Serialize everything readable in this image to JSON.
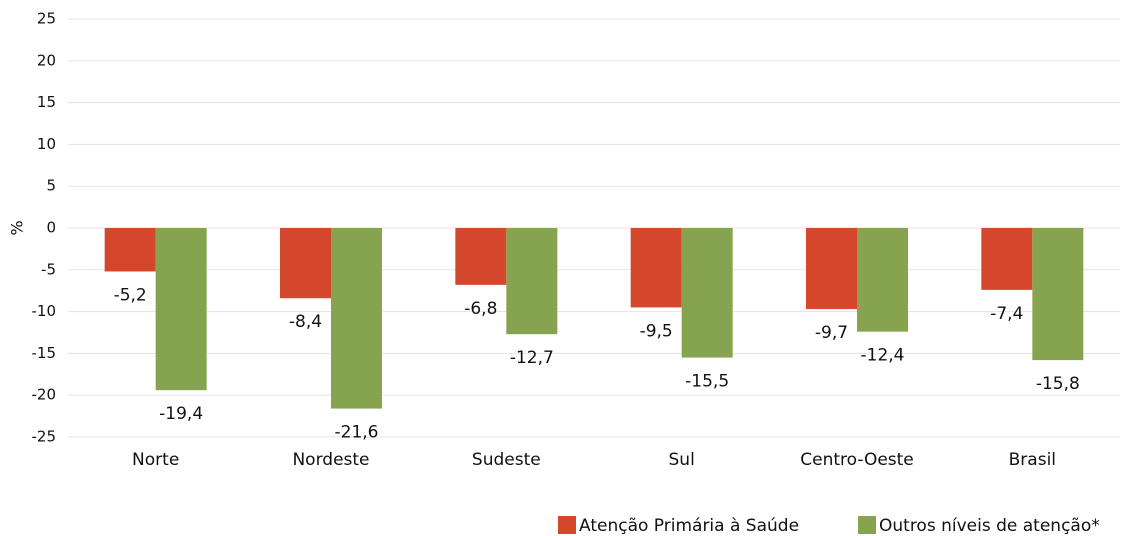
{
  "chart_data": {
    "type": "bar",
    "y_label": "%",
    "categories": [
      "Norte",
      "Nordeste",
      "Sudeste",
      "Sul",
      "Centro-Oeste",
      "Brasil"
    ],
    "series": [
      {
        "name": "Atenção Primária à Saúde",
        "color": "#d4472c",
        "values": [
          -5.2,
          -8.4,
          -6.8,
          -9.5,
          -9.7,
          -7.4
        ],
        "value_labels": [
          "-5,2",
          "-8,4",
          "-6,8",
          "-9,5",
          "-9,7",
          "-7,4"
        ]
      },
      {
        "name": "Outros níveis de atenção*",
        "color": "#86a450",
        "values": [
          -19.4,
          -21.6,
          -12.7,
          -15.5,
          -12.4,
          -15.8
        ],
        "value_labels": [
          "-19,4",
          "-21,6",
          "-12,7",
          "-15,5",
          "-12,4",
          "-15,8"
        ]
      }
    ],
    "ylim": [
      -25,
      25
    ],
    "yticks": [
      -25,
      -20,
      -15,
      -10,
      -5,
      0,
      5,
      10,
      15,
      20,
      25
    ],
    "grid": true,
    "legend": "bottom-right"
  }
}
